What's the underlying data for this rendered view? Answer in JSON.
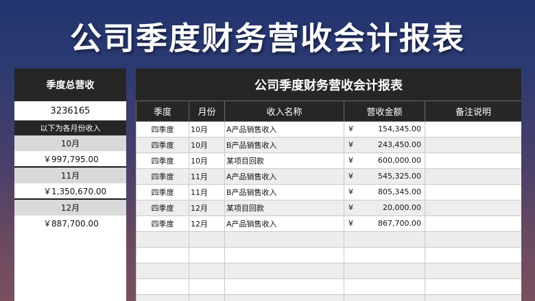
{
  "page_title": "公司季度财务营收会计报表",
  "summary": {
    "header": "季度总营收",
    "total": "3236165",
    "subheader": "以下为各月份收入",
    "months": [
      {
        "label": "10月",
        "value": "￥997,795.00"
      },
      {
        "label": "11月",
        "value": "￥1,350,670.00"
      },
      {
        "label": "12月",
        "value": "￥887,700.00"
      }
    ]
  },
  "table": {
    "title": "公司季度财务营收会计报表",
    "columns": [
      "季度",
      "月份",
      "收入名称",
      "营收金额",
      "备注说明"
    ],
    "currency_symbol": "¥",
    "rows": [
      {
        "quarter": "四季度",
        "month": "10月",
        "name": "A产品销售收入",
        "amount": "154,345.00",
        "note": ""
      },
      {
        "quarter": "四季度",
        "month": "10月",
        "name": "B产品销售收入",
        "amount": "243,450.00",
        "note": ""
      },
      {
        "quarter": "四季度",
        "month": "10月",
        "name": "某项目回款",
        "amount": "600,000.00",
        "note": ""
      },
      {
        "quarter": "四季度",
        "month": "11月",
        "name": "A产品销售收入",
        "amount": "545,325.00",
        "note": ""
      },
      {
        "quarter": "四季度",
        "month": "11月",
        "name": "B产品销售收入",
        "amount": "805,345.00",
        "note": ""
      },
      {
        "quarter": "四季度",
        "month": "12月",
        "name": "某项目回款",
        "amount": "20,000.00",
        "note": ""
      },
      {
        "quarter": "四季度",
        "month": "12月",
        "name": "A产品销售收入",
        "amount": "867,700.00",
        "note": ""
      }
    ]
  }
}
